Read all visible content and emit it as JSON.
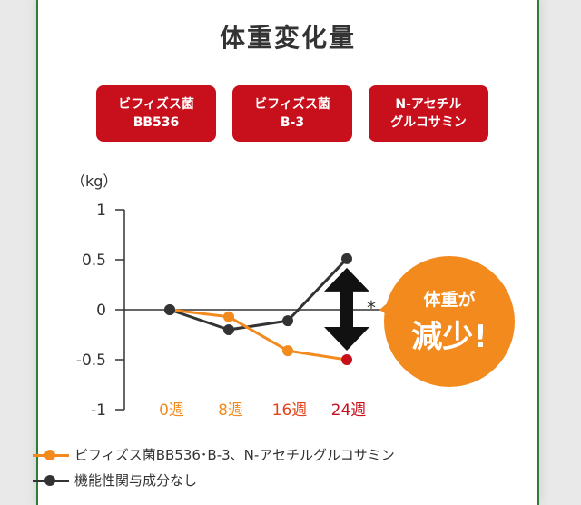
{
  "title": "体重変化量",
  "badges": [
    {
      "line1": "ビフィズス菌",
      "line2": "BB536"
    },
    {
      "line1": "ビフィズス菌",
      "line2": "B-3"
    },
    {
      "line1": "N-アセチル",
      "line2": "グルコサミン"
    }
  ],
  "callout": {
    "line1": "体重が",
    "line2": "減少!"
  },
  "significance_mark": "*",
  "colors": {
    "accent": "#c8101c",
    "orange": "#f28a1e",
    "gray": "#333333",
    "callout": "#f28a1e",
    "border": "#2e7d32"
  },
  "chart_data": {
    "type": "line",
    "ylabel": "（kg）",
    "ylim": [
      -1,
      1
    ],
    "yticks": [
      "1",
      "0.5",
      "0",
      "-0.5",
      "-1"
    ],
    "ytick_values": [
      1,
      0.5,
      0,
      -0.5,
      -1
    ],
    "categories": [
      "0週",
      "8週",
      "16週",
      "24週"
    ],
    "category_colors": [
      "#f28a1e",
      "#f28a1e",
      "#e0441c",
      "#c8101c"
    ],
    "series": [
      {
        "name": "ビフィズス菌BB536･B-3、N-アセチルグルコサミン",
        "values": [
          0,
          -0.07,
          -0.41,
          -0.5
        ],
        "color": "#f28a1e",
        "last_point_color": "#c8101c"
      },
      {
        "name": "機能性関与成分なし",
        "values": [
          0,
          -0.2,
          -0.11,
          0.51
        ],
        "color": "#333333"
      }
    ],
    "legend_position": "bottom-left"
  }
}
